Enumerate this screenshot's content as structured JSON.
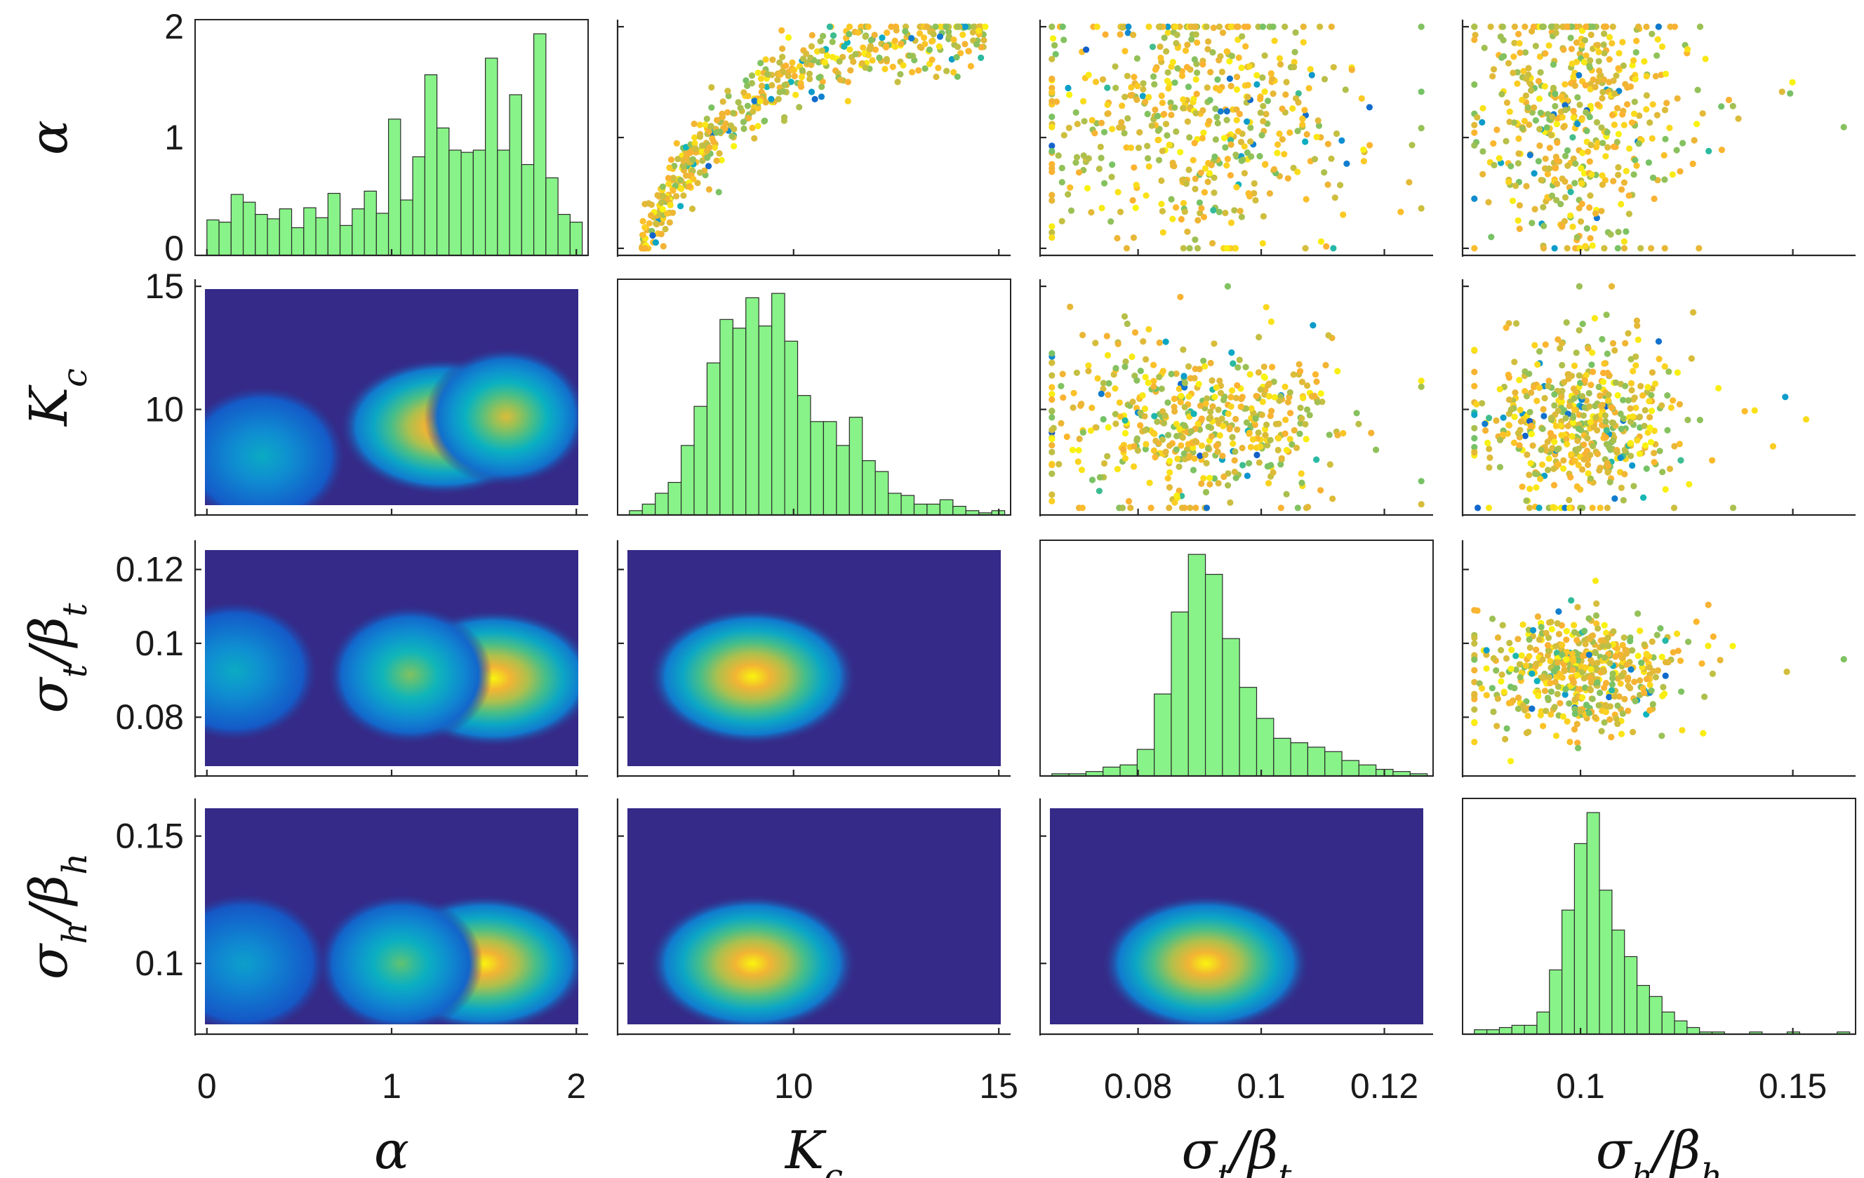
{
  "chart_data": {
    "type": "scatter-matrix",
    "variables": [
      {
        "key": "alpha",
        "label": "α",
        "sub": "",
        "range": [
          0,
          2
        ],
        "ticks": [
          0,
          1,
          2
        ],
        "tick_labels": [
          "0",
          "1",
          "2"
        ]
      },
      {
        "key": "Kc",
        "label": "K",
        "sub": "c",
        "range": [
          6,
          15
        ],
        "ticks": [
          10,
          15
        ],
        "tick_labels": [
          "10",
          "15"
        ]
      },
      {
        "key": "st",
        "label": "σ/β",
        "sub": "t",
        "range": [
          0.066,
          0.126
        ],
        "ticks": [
          0.08,
          0.1,
          0.12
        ],
        "tick_labels": [
          "0.08",
          "0.1",
          "0.12"
        ]
      },
      {
        "key": "sh",
        "label": "σ/β",
        "sub": "h",
        "range": [
          0.075,
          0.162
        ],
        "ticks": [
          0.1,
          0.15
        ],
        "tick_labels": [
          "0.1",
          "0.15"
        ]
      }
    ],
    "histograms": [
      {
        "variable": "alpha",
        "range": [
          0,
          2
        ],
        "counts": [
          0.32,
          0.3,
          0.55,
          0.48,
          0.37,
          0.33,
          0.42,
          0.25,
          0.43,
          0.34,
          0.56,
          0.27,
          0.42,
          0.58,
          0.38,
          1.23,
          0.5,
          0.89,
          1.63,
          1.15,
          0.95,
          0.93,
          0.95,
          1.78,
          0.95,
          1.45,
          0.82,
          2.0,
          0.7,
          0.37,
          0.3
        ]
      },
      {
        "variable": "Kc",
        "range": [
          6,
          15
        ],
        "counts": [
          0.02,
          0.05,
          0.1,
          0.15,
          0.32,
          0.5,
          0.7,
          0.9,
          0.86,
          1.0,
          0.87,
          1.02,
          0.8,
          0.55,
          0.43,
          0.43,
          0.32,
          0.45,
          0.25,
          0.2,
          0.1,
          0.09,
          0.05,
          0.05,
          0.07,
          0.04,
          0.02,
          0.01,
          0.02
        ]
      },
      {
        "variable": "st",
        "range": [
          0.066,
          0.126
        ],
        "counts": [
          0.01,
          0.01,
          0.02,
          0.04,
          0.05,
          0.12,
          0.37,
          0.74,
          1.0,
          0.91,
          0.62,
          0.4,
          0.26,
          0.17,
          0.15,
          0.13,
          0.11,
          0.07,
          0.05,
          0.03,
          0.02,
          0.01
        ]
      },
      {
        "variable": "sh",
        "range": [
          0.075,
          0.162
        ],
        "counts": [
          0.02,
          0.02,
          0.03,
          0.04,
          0.04,
          0.1,
          0.29,
          0.56,
          0.86,
          1.0,
          0.65,
          0.47,
          0.35,
          0.22,
          0.17,
          0.1,
          0.06,
          0.03,
          0.01,
          0.01,
          0.0,
          0.0,
          0.01,
          0.0,
          0.0,
          0.01,
          0.0,
          0.0,
          0.0,
          0.01
        ]
      }
    ],
    "density_modes": [
      {
        "x": "alpha",
        "y": "Kc",
        "peaks": [
          {
            "x": 1.28,
            "y": 9.3,
            "h": 1.0
          },
          {
            "x": 1.62,
            "y": 9.7,
            "h": 0.75
          },
          {
            "x": 0.3,
            "y": 8.1,
            "h": 0.35
          }
        ]
      },
      {
        "x": "alpha",
        "y": "st",
        "peaks": [
          {
            "x": 1.55,
            "y": 0.0905,
            "h": 1.0
          },
          {
            "x": 1.1,
            "y": 0.0915,
            "h": 0.6
          },
          {
            "x": 0.15,
            "y": 0.0925,
            "h": 0.35
          }
        ]
      },
      {
        "x": "alpha",
        "y": "sh",
        "peaks": [
          {
            "x": 1.5,
            "y": 0.1,
            "h": 1.0
          },
          {
            "x": 1.05,
            "y": 0.1,
            "h": 0.55
          },
          {
            "x": 0.2,
            "y": 0.1,
            "h": 0.3
          }
        ]
      },
      {
        "x": "Kc",
        "y": "st",
        "peaks": [
          {
            "x": 9.0,
            "y": 0.091,
            "h": 1.0
          }
        ]
      },
      {
        "x": "Kc",
        "y": "sh",
        "peaks": [
          {
            "x": 9.0,
            "y": 0.1,
            "h": 1.0
          }
        ]
      },
      {
        "x": "st",
        "y": "sh",
        "peaks": [
          {
            "x": 0.091,
            "y": 0.1,
            "h": 1.0
          }
        ]
      }
    ],
    "scatter_clouds": [
      {
        "x": "Kc",
        "y": "alpha",
        "relation": "alpha rises from 0 at Kc 6.5 to about 1.9 at Kc 14"
      },
      {
        "x": "st",
        "y": "alpha",
        "center": [
          0.09,
          1.2
        ],
        "spread": [
          0.012,
          0.55
        ]
      },
      {
        "x": "sh",
        "y": "alpha",
        "center": [
          0.1,
          1.2
        ],
        "spread": [
          0.012,
          0.55
        ]
      },
      {
        "x": "st",
        "y": "Kc",
        "center": [
          0.09,
          9.5
        ],
        "spread": [
          0.011,
          1.6
        ]
      },
      {
        "x": "sh",
        "y": "Kc",
        "center": [
          0.1,
          9.5
        ],
        "spread": [
          0.011,
          1.6
        ]
      },
      {
        "x": "sh",
        "y": "st",
        "center": [
          0.1,
          0.092
        ],
        "spread": [
          0.011,
          0.007
        ]
      }
    ],
    "grid": false,
    "legend": "none",
    "colors": {
      "histogram_fill": "#88f388",
      "density_low": "#352a87",
      "density_mid": "#0f9bd7",
      "density_high": "#fcb131",
      "scatter_low": "#352a87",
      "scatter_high": "#f9f50e"
    }
  }
}
